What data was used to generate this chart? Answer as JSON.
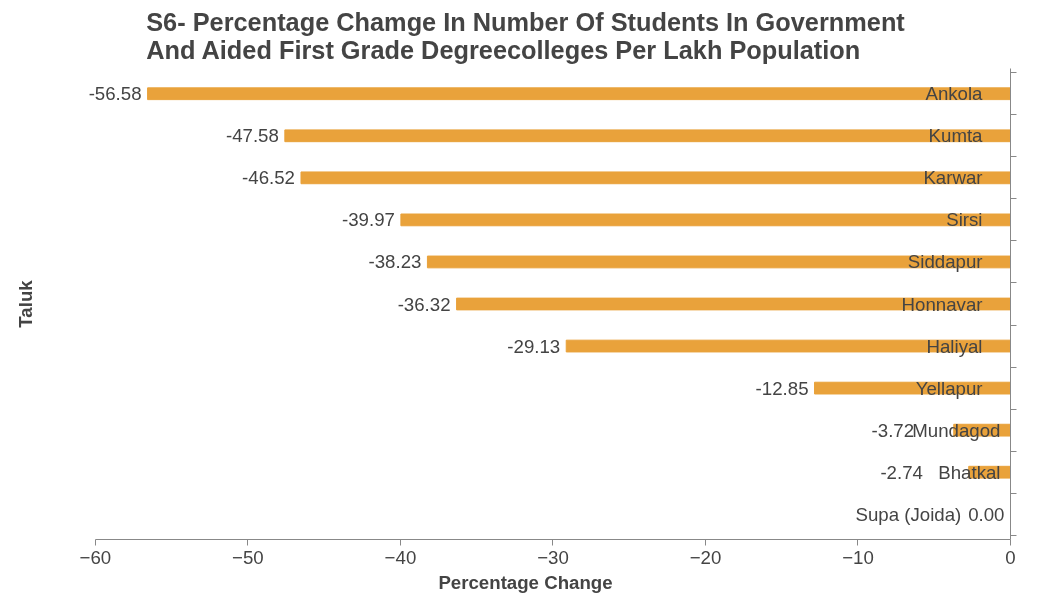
{
  "chart_data": {
    "type": "bar",
    "orientation": "horizontal",
    "title": "S6- Percentage Chamge In Number Of Students In Government And Aided First Grade Degreecolleges Per Lakh Population",
    "xlabel": "Percentage Change",
    "ylabel": "Taluk",
    "categories": [
      "Ankola",
      "Kumta",
      "Karwar",
      "Sirsi",
      "Siddapur",
      "Honnavar",
      "Haliyal",
      "Yellapur",
      "Mundagod",
      "Bhatkal",
      "Supa (Joida)"
    ],
    "values": [
      -56.58,
      -47.58,
      -46.52,
      -39.97,
      -38.23,
      -36.32,
      -29.13,
      -12.85,
      -3.72,
      -2.74,
      0
    ],
    "value_labels": [
      "-56.58",
      "-47.58",
      "-46.52",
      "-39.97",
      "-38.23",
      "-36.32",
      "-29.13",
      "-12.85",
      "-3.72",
      "-2.74",
      "0.00"
    ],
    "color": "#e9a23b",
    "xlim": [
      -60,
      0
    ],
    "xticks": [
      -60,
      -50,
      -40,
      -30,
      -20,
      -10,
      0
    ],
    "grid": false
  }
}
